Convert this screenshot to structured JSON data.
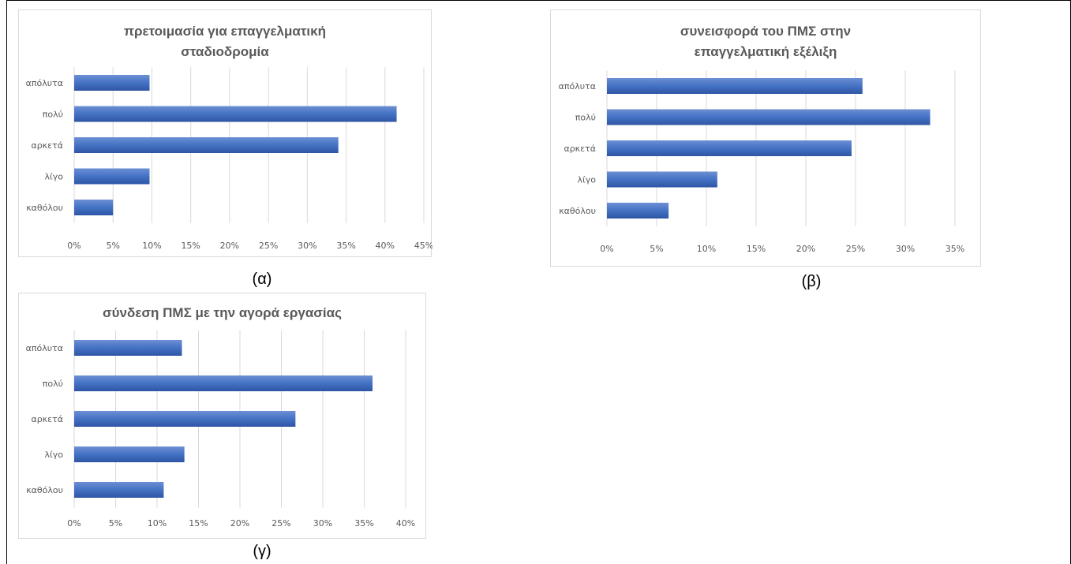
{
  "captions": [
    "(α)",
    "(β)",
    "(γ)"
  ],
  "colors": {
    "bar": "#4472c4",
    "bar_dark": "#2f55a4",
    "grid": "#d9d9d9",
    "text": "#595959"
  },
  "chart_data": [
    {
      "type": "bar",
      "orientation": "horizontal",
      "title": "πρετοιμασία για επαγγελματική σταδιοδρομία",
      "categories": [
        "απόλυτα",
        "πολύ",
        "αρκετά",
        "λίγο",
        "καθόλου"
      ],
      "values": [
        9.7,
        41.5,
        34.0,
        9.7,
        5.0
      ],
      "xlim": [
        0,
        45
      ],
      "ticks": [
        "0%",
        "5%",
        "10%",
        "15%",
        "20%",
        "25%",
        "30%",
        "35%",
        "40%",
        "45%"
      ],
      "grid": true,
      "legend": "none"
    },
    {
      "type": "bar",
      "orientation": "horizontal",
      "title": "συνεισφορά του ΠΜΣ στην επαγγελματική εξέλιξη",
      "categories": [
        "απόλυτα",
        "πολύ",
        "αρκετά",
        "λίγο",
        "καθόλου"
      ],
      "values": [
        25.7,
        32.5,
        24.6,
        11.1,
        6.2
      ],
      "xlim": [
        0,
        35
      ],
      "ticks": [
        "0%",
        "5%",
        "10%",
        "15%",
        "20%",
        "25%",
        "30%",
        "35%"
      ],
      "grid": true,
      "legend": "none"
    },
    {
      "type": "bar",
      "orientation": "horizontal",
      "title": "σύνδεση ΠΜΣ με την αγορά εργασίας",
      "categories": [
        "απόλυτα",
        "πολύ",
        "αρκετά",
        "λίγο",
        "καθόλου"
      ],
      "values": [
        13.0,
        36.0,
        26.7,
        13.3,
        10.8
      ],
      "xlim": [
        0,
        40
      ],
      "ticks": [
        "0%",
        "5%",
        "10%",
        "15%",
        "20%",
        "25%",
        "30%",
        "35%",
        "40%"
      ],
      "grid": true,
      "legend": "none"
    }
  ]
}
